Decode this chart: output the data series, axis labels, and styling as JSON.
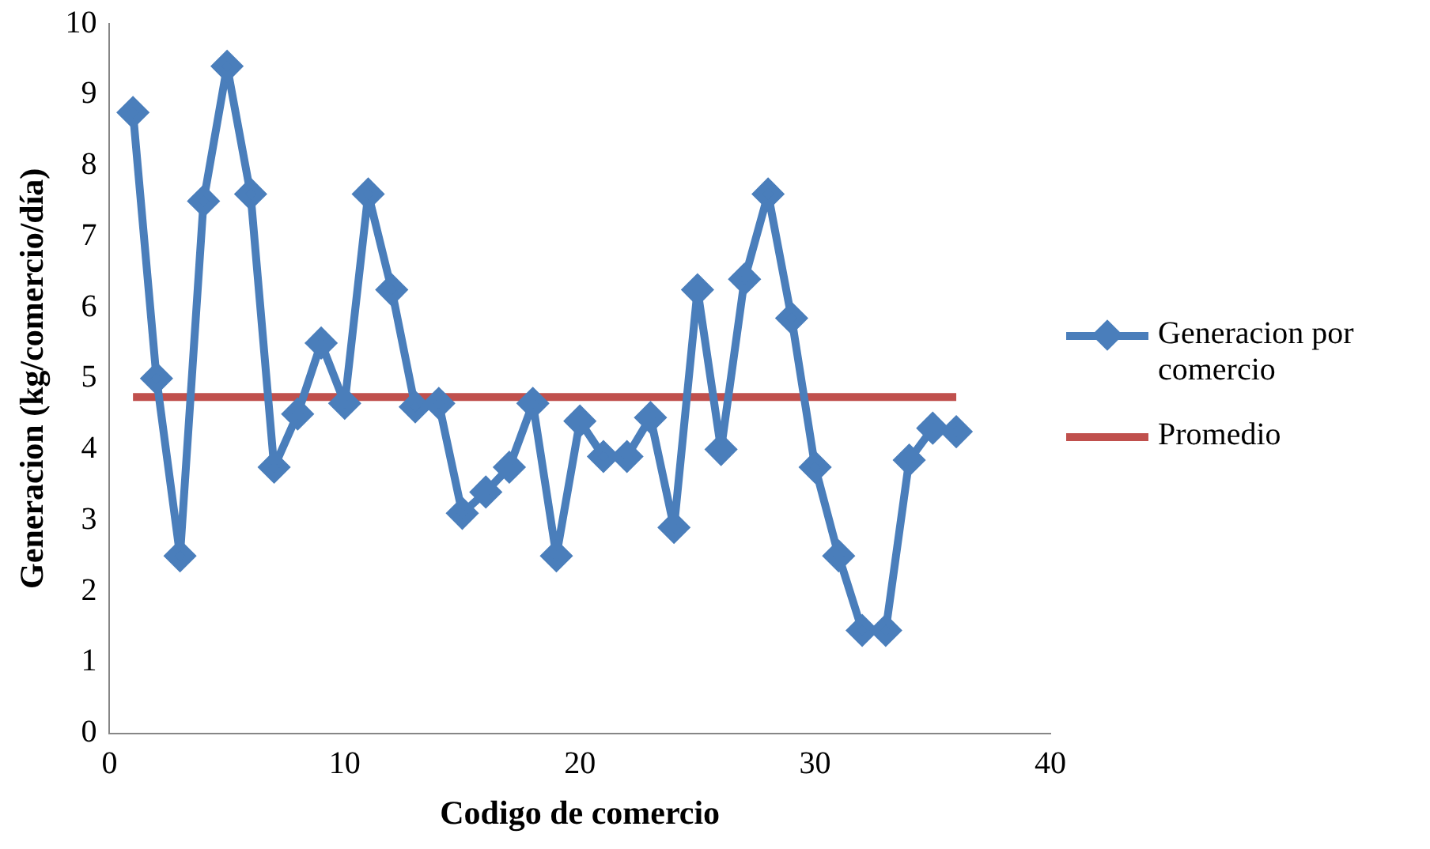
{
  "chart_data": {
    "type": "line",
    "xlabel": "Codigo de comercio",
    "ylabel": "Generacion (kg/comercio/día)",
    "x": [
      1,
      2,
      3,
      4,
      5,
      6,
      7,
      8,
      9,
      10,
      11,
      12,
      13,
      14,
      15,
      16,
      17,
      18,
      19,
      20,
      21,
      22,
      23,
      24,
      25,
      26,
      27,
      28,
      29,
      30,
      31,
      32,
      33,
      34,
      35,
      36
    ],
    "series": [
      {
        "name": "Generacion por comercio",
        "color": "#4a7ebb",
        "marker": "diamond",
        "values": [
          8.75,
          5.0,
          2.5,
          7.5,
          9.4,
          7.6,
          3.75,
          4.5,
          5.5,
          4.65,
          7.6,
          6.25,
          4.6,
          4.65,
          3.1,
          3.4,
          3.75,
          4.65,
          2.5,
          4.4,
          3.9,
          3.9,
          4.45,
          2.9,
          6.25,
          4.0,
          6.4,
          7.6,
          5.85,
          3.75,
          2.5,
          1.45,
          1.45,
          3.85,
          4.3,
          4.25
        ]
      },
      {
        "name": "Promedio",
        "color": "#c0504d",
        "marker": "none",
        "x": [
          1,
          36
        ],
        "values": [
          4.74,
          4.74
        ]
      }
    ],
    "xlim": [
      0,
      40
    ],
    "xticks": [
      0,
      10,
      20,
      30,
      40
    ],
    "ylim": [
      0,
      10
    ],
    "yticks": [
      0,
      1,
      2,
      3,
      4,
      5,
      6,
      7,
      8,
      9,
      10
    ],
    "grid": false,
    "legend": "right",
    "line_style": "solid"
  }
}
